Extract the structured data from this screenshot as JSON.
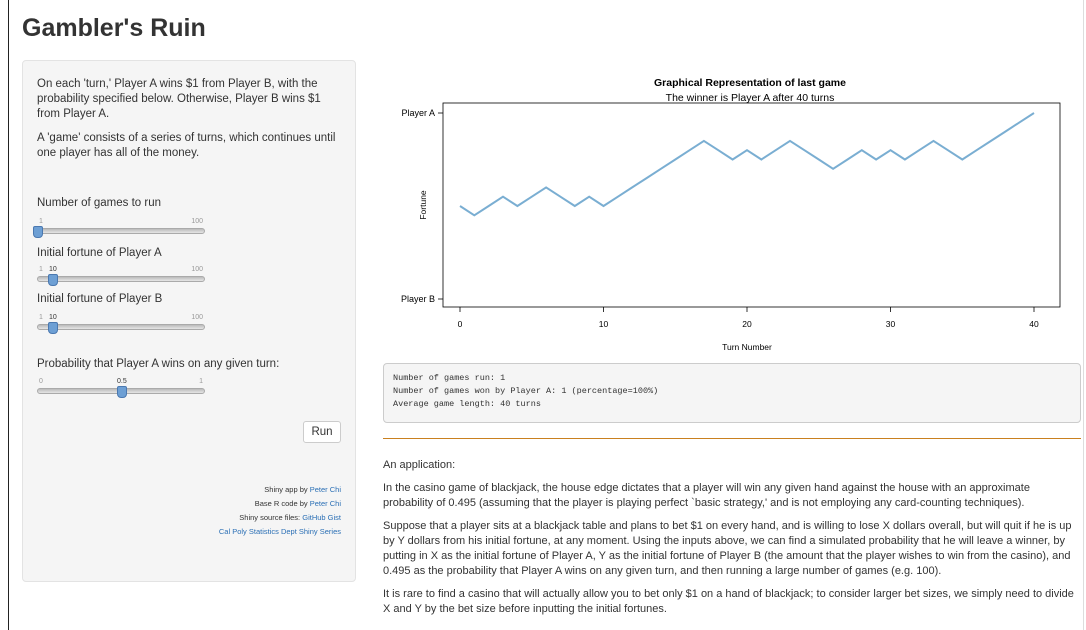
{
  "title": "Gambler's Ruin",
  "sidebar": {
    "desc1": "On each 'turn,' Player A wins $1 from Player B, with the probability specified below. Otherwise, Player B wins $1 from Player A.",
    "desc2": "A 'game' consists of a series of turns, which continues until one player has all of the money.",
    "controls": {
      "games": {
        "label": "Number of games to run",
        "min": "1",
        "max": "100",
        "value": "1",
        "fraction": 0.0
      },
      "fortune_a": {
        "label": "Initial fortune of Player A",
        "min": "1",
        "max": "100",
        "value": "10",
        "fraction": 0.0909
      },
      "fortune_b": {
        "label": "Initial fortune of Player B",
        "min": "1",
        "max": "100",
        "value": "10",
        "fraction": 0.0909
      },
      "prob": {
        "label": "Probability that Player A wins on any given turn:",
        "min": "0",
        "max": "1",
        "value": "0.5",
        "fraction": 0.5
      }
    },
    "run_label": "Run",
    "credits": [
      {
        "prefix": "Shiny app by ",
        "link": "Peter Chi"
      },
      {
        "prefix": "Base R code by ",
        "link": "Peter Chi"
      },
      {
        "prefix": "Shiny source files: ",
        "link": "GitHub Gist"
      },
      {
        "prefix": "",
        "link": "Cal Poly Statistics Dept Shiny Series"
      }
    ]
  },
  "chart_data": {
    "type": "line",
    "title": "Graphical Representation of last game",
    "subtitle": "The winner is Player A after 40 turns",
    "xlabel": "Turn Number",
    "ylabel": "Fortune",
    "x_ticks": [
      0,
      10,
      20,
      30,
      40
    ],
    "y_tick_labels": [
      "Player A",
      "Player B"
    ],
    "xlim": [
      0,
      40
    ],
    "ylim": [
      0,
      20
    ],
    "line_color": "#7aaed2",
    "series": [
      {
        "x": [
          0,
          1,
          2,
          3,
          4,
          5,
          6,
          7,
          8,
          9,
          10,
          11,
          12,
          13,
          14,
          15,
          16,
          17,
          18,
          19,
          20,
          21,
          22,
          23,
          24,
          25,
          26,
          27,
          28,
          29,
          30,
          31,
          32,
          33,
          34,
          35,
          36,
          37,
          38,
          39,
          40
        ],
        "values": [
          10,
          9,
          10,
          11,
          10,
          11,
          12,
          11,
          10,
          11,
          10,
          11,
          12,
          13,
          14,
          15,
          16,
          17,
          16,
          15,
          16,
          15,
          16,
          17,
          16,
          15,
          14,
          15,
          16,
          15,
          16,
          15,
          16,
          17,
          16,
          15,
          16,
          17,
          18,
          19,
          20
        ]
      }
    ]
  },
  "output": {
    "line1": "Number of games run: 1",
    "line2": "Number of games won by Player A: 1 (percentage=100%)",
    "line3": "Average game length: 40 turns"
  },
  "article": {
    "heading": "An application:",
    "p1": "In the casino game of blackjack, the house edge dictates that a player will win any given hand against the house with an approximate probability of 0.495 (assuming that the player is playing perfect `basic strategy,' and is not employing any card-counting techniques).",
    "p2": "Suppose that a player sits at a blackjack table and plans to bet $1 on every hand, and is willing to lose X dollars overall, but will quit if he is up by Y dollars from his initial fortune, at any moment. Using the inputs above, we can find a simulated probability that he will leave a winner, by putting in X as the initial fortune of Player A, Y as the initial fortune of Player B (the amount that the player wishes to win from the casino), and 0.495 as the probability that Player A wins on any given turn, and then running a large number of games (e.g. 100).",
    "p3": "It is rare to find a casino that will actually allow you to bet only $1 on a hand of blackjack; to consider larger bet sizes, we simply need to divide X and Y by the bet size before inputting the initial fortunes."
  }
}
